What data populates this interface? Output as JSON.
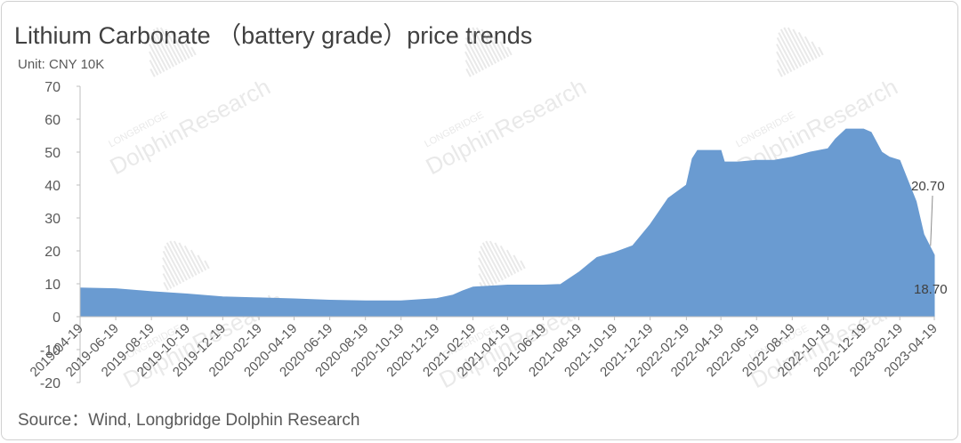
{
  "title": "Lithium Carbonate （battery grade）price trends",
  "unit": "Unit: CNY 10K",
  "source": "Source：Wind, Longbridge Dolphin Research",
  "watermark": {
    "line1": "LONGBRIDGE",
    "line2": "DolphinResearch"
  },
  "colors": {
    "area": "#6a9bd1",
    "axis": "#bfbfbf",
    "text": "#595959"
  },
  "chart_data": {
    "type": "area",
    "title": "Lithium Carbonate （battery grade）price trends",
    "ylabel": "Unit: CNY 10K",
    "ylim": [
      -20,
      70
    ],
    "yticks": [
      -20,
      -10,
      0,
      10,
      20,
      30,
      40,
      50,
      60,
      70
    ],
    "xlim": [
      "2019-04-19",
      "2023-04-19"
    ],
    "xtick_labels": [
      "2019-04-19",
      "2019-06-19",
      "2019-08-19",
      "2019-10-19",
      "2019-12-19",
      "2020-02-19",
      "2020-04-19",
      "2020-06-19",
      "2020-08-19",
      "2020-10-19",
      "2020-12-19",
      "2021-02-19",
      "2021-04-19",
      "2021-06-19",
      "2021-08-19",
      "2021-10-19",
      "2021-12-19",
      "2022-02-19",
      "2022-04-19",
      "2022-06-19",
      "2022-08-19",
      "2022-10-19",
      "2022-12-19",
      "2023-02-19",
      "2023-04-19"
    ],
    "grid": false,
    "series": [
      {
        "x": [
          "2019-04-19",
          "2019-06-19",
          "2019-08-19",
          "2019-10-19",
          "2019-12-19",
          "2020-02-19",
          "2020-04-19",
          "2020-06-19",
          "2020-08-19",
          "2020-10-19",
          "2020-12-19",
          "2021-01-15",
          "2021-02-01",
          "2021-02-19",
          "2021-04-19",
          "2021-06-19",
          "2021-07-19",
          "2021-08-19",
          "2021-09-19",
          "2021-10-19",
          "2021-11-19",
          "2021-12-19",
          "2022-01-19",
          "2022-02-19",
          "2022-03-01",
          "2022-03-10",
          "2022-03-19",
          "2022-04-19",
          "2022-04-25",
          "2022-05-19",
          "2022-06-19",
          "2022-07-19",
          "2022-08-19",
          "2022-09-19",
          "2022-10-19",
          "2022-11-01",
          "2022-11-19",
          "2022-12-19",
          "2023-01-01",
          "2023-01-19",
          "2023-02-01",
          "2023-02-19",
          "2023-03-01",
          "2023-03-19",
          "2023-04-01",
          "2023-04-19"
        ],
        "values": [
          8.7,
          8.5,
          7.6,
          6.9,
          6.0,
          5.7,
          5.4,
          5.0,
          4.8,
          4.8,
          5.5,
          6.5,
          7.8,
          9.0,
          9.6,
          9.6,
          9.8,
          13.5,
          18.0,
          19.5,
          21.5,
          28.0,
          36.0,
          40.0,
          48.0,
          50.5,
          50.5,
          50.5,
          47.0,
          47.0,
          47.5,
          47.5,
          48.5,
          50.0,
          51.0,
          54.0,
          57.0,
          57.0,
          56.0,
          50.0,
          48.5,
          47.5,
          43.0,
          35.0,
          25.0,
          18.7
        ]
      }
    ],
    "annotations": [
      {
        "text": "20.70",
        "x": "2023-04-08",
        "y": 20.7
      },
      {
        "text": "18.70",
        "x": "2023-04-19",
        "y": 18.7
      }
    ]
  }
}
